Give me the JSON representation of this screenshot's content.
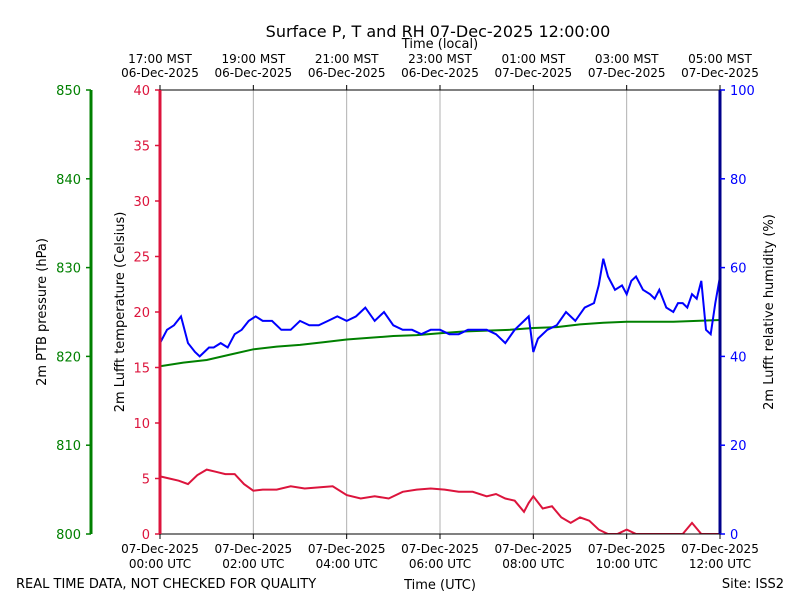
{
  "chart_data": {
    "type": "line",
    "title": "Surface P, T and RH 07-Dec-2025 12:00:00",
    "xlabel": "Time (UTC)",
    "top_xlabel": "Time (local)",
    "footer_left": "REAL TIME DATA, NOT CHECKED FOR QUALITY",
    "footer_right": "Site: ISS2",
    "x_range_hours": [
      0,
      12
    ],
    "grid": "vertical",
    "x_ticks": [
      {
        "hour": 0,
        "utc_date": "07-Dec-2025",
        "utc_time": "00:00 UTC",
        "local_time": "17:00 MST",
        "local_date": "06-Dec-2025"
      },
      {
        "hour": 2,
        "utc_date": "07-Dec-2025",
        "utc_time": "02:00 UTC",
        "local_time": "19:00 MST",
        "local_date": "06-Dec-2025"
      },
      {
        "hour": 4,
        "utc_date": "07-Dec-2025",
        "utc_time": "04:00 UTC",
        "local_time": "21:00 MST",
        "local_date": "06-Dec-2025"
      },
      {
        "hour": 6,
        "utc_date": "07-Dec-2025",
        "utc_time": "06:00 UTC",
        "local_time": "23:00 MST",
        "local_date": "06-Dec-2025"
      },
      {
        "hour": 8,
        "utc_date": "07-Dec-2025",
        "utc_time": "08:00 UTC",
        "local_time": "01:00 MST",
        "local_date": "07-Dec-2025"
      },
      {
        "hour": 10,
        "utc_date": "07-Dec-2025",
        "utc_time": "10:00 UTC",
        "local_time": "03:00 MST",
        "local_date": "07-Dec-2025"
      },
      {
        "hour": 12,
        "utc_date": "07-Dec-2025",
        "utc_time": "12:00 UTC",
        "local_time": "05:00 MST",
        "local_date": "07-Dec-2025"
      }
    ],
    "axes": {
      "pressure": {
        "label": "2m PTB pressure (hPa)",
        "range": [
          800,
          850
        ],
        "ticks": [
          800,
          810,
          820,
          830,
          840,
          850
        ],
        "color": "#008000"
      },
      "temperature": {
        "label": "2m Lufft temperature (Celsius)",
        "range": [
          0,
          40
        ],
        "ticks": [
          0,
          5,
          10,
          15,
          20,
          25,
          30,
          35,
          40
        ],
        "color": "#dc143c"
      },
      "humidity": {
        "label": "2m Lufft relative humidity (%)",
        "range": [
          0,
          100
        ],
        "ticks": [
          0,
          20,
          40,
          60,
          80,
          100
        ],
        "color": "#0000ff"
      }
    },
    "series": [
      {
        "axis": "pressure",
        "color": "#008000",
        "x": [
          0,
          0.5,
          1,
          1.5,
          2,
          2.5,
          3,
          3.5,
          4,
          4.5,
          5,
          5.5,
          6,
          6.5,
          7,
          7.5,
          8,
          8.5,
          9,
          9.5,
          10,
          10.5,
          11,
          11.5,
          12
        ],
        "y": [
          818.9,
          819.3,
          819.6,
          820.2,
          820.8,
          821.1,
          821.3,
          821.6,
          821.9,
          822.1,
          822.3,
          822.4,
          822.6,
          822.8,
          822.9,
          823.0,
          823.2,
          823.3,
          823.6,
          823.8,
          823.9,
          823.9,
          823.9,
          824.0,
          824.1
        ]
      },
      {
        "axis": "temperature",
        "color": "#dc143c",
        "x": [
          0,
          0.2,
          0.4,
          0.6,
          0.8,
          1.0,
          1.2,
          1.4,
          1.6,
          1.8,
          2.0,
          2.2,
          2.5,
          2.8,
          3.1,
          3.4,
          3.7,
          4.0,
          4.3,
          4.6,
          4.9,
          5.2,
          5.5,
          5.8,
          6.1,
          6.4,
          6.7,
          7.0,
          7.2,
          7.4,
          7.6,
          7.8,
          7.9,
          8.0,
          8.2,
          8.4,
          8.6,
          8.8,
          9.0,
          9.2,
          9.4,
          9.6,
          9.8,
          10.0,
          10.2,
          10.4,
          10.6,
          10.8,
          11.0,
          11.2,
          11.4,
          11.6,
          11.8,
          12.0
        ],
        "y": [
          5.2,
          5.0,
          4.8,
          4.5,
          5.3,
          5.8,
          5.6,
          5.4,
          5.4,
          4.5,
          3.9,
          4.0,
          4.0,
          4.3,
          4.1,
          4.2,
          4.3,
          3.5,
          3.2,
          3.4,
          3.2,
          3.8,
          4.0,
          4.1,
          4.0,
          3.8,
          3.8,
          3.4,
          3.6,
          3.2,
          3.0,
          2.0,
          2.8,
          3.4,
          2.3,
          2.5,
          1.5,
          1.0,
          1.5,
          1.2,
          0.4,
          0.0,
          0.0,
          0.4,
          0.0,
          0.0,
          0.0,
          0.0,
          0.0,
          0.0,
          1.0,
          0.0,
          0.0,
          0.0
        ]
      },
      {
        "axis": "humidity",
        "color": "#0000ff",
        "x": [
          0,
          0.15,
          0.3,
          0.45,
          0.6,
          0.75,
          0.85,
          0.95,
          1.05,
          1.15,
          1.3,
          1.45,
          1.6,
          1.75,
          1.9,
          2.05,
          2.2,
          2.4,
          2.6,
          2.8,
          3.0,
          3.2,
          3.4,
          3.6,
          3.8,
          4.0,
          4.2,
          4.4,
          4.6,
          4.8,
          5.0,
          5.2,
          5.4,
          5.6,
          5.8,
          6.0,
          6.2,
          6.4,
          6.6,
          6.8,
          7.0,
          7.2,
          7.4,
          7.6,
          7.8,
          7.9,
          8.0,
          8.1,
          8.3,
          8.5,
          8.7,
          8.9,
          9.1,
          9.3,
          9.4,
          9.5,
          9.6,
          9.75,
          9.9,
          10.0,
          10.1,
          10.2,
          10.35,
          10.5,
          10.6,
          10.7,
          10.85,
          11.0,
          11.1,
          11.2,
          11.3,
          11.4,
          11.5,
          11.6,
          11.7,
          11.8,
          11.9,
          12.0
        ],
        "y": [
          43,
          46,
          47,
          49,
          43,
          41,
          40,
          41,
          42,
          42,
          43,
          42,
          45,
          46,
          48,
          49,
          48,
          48,
          46,
          46,
          48,
          47,
          47,
          48,
          49,
          48,
          49,
          51,
          48,
          50,
          47,
          46,
          46,
          45,
          46,
          46,
          45,
          45,
          46,
          46,
          46,
          45,
          43,
          46,
          48,
          49,
          41,
          44,
          46,
          47,
          50,
          48,
          51,
          52,
          56,
          62,
          58,
          55,
          56,
          54,
          57,
          58,
          55,
          54,
          53,
          55,
          51,
          50,
          52,
          52,
          51,
          54,
          53,
          57,
          46,
          45,
          52,
          58
        ]
      }
    ]
  }
}
